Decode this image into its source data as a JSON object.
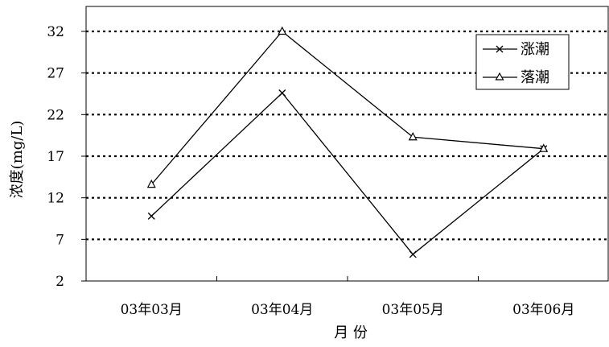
{
  "chart_data": {
    "type": "line",
    "categories": [
      "03年03月",
      "03年04月",
      "03年05月",
      "03年06月"
    ],
    "series": [
      {
        "name": "涨潮",
        "marker": "x",
        "values": [
          9.8,
          24.6,
          5.2,
          17.9
        ]
      },
      {
        "name": "落潮",
        "marker": "triangle",
        "values": [
          13.6,
          32.0,
          19.3,
          17.9
        ]
      }
    ],
    "title": "",
    "xlabel": "月 份",
    "ylabel": "浓度(mg/L)",
    "ylim": [
      2,
      35
    ],
    "yticks": [
      2,
      7,
      12,
      17,
      22,
      27,
      32
    ],
    "grid": "horizontal-dotted",
    "legend": "top-right"
  },
  "colors": {
    "line": "#000000",
    "grid": "#000000",
    "background": "#ffffff"
  }
}
